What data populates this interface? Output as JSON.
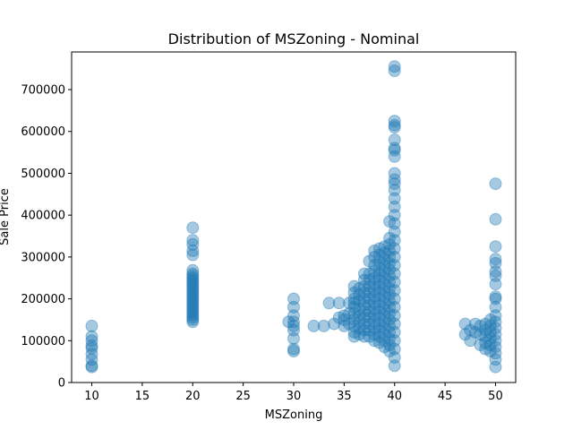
{
  "chart_data": {
    "type": "scatter",
    "title": "Distribution of MSZoning - Nominal",
    "xlabel": "MSZoning",
    "ylabel": "Sale Price",
    "xlim": [
      8,
      52
    ],
    "ylim": [
      0,
      790000
    ],
    "xticks": [
      10,
      15,
      20,
      25,
      30,
      35,
      40,
      45,
      50
    ],
    "yticks": [
      0,
      100000,
      200000,
      300000,
      400000,
      500000,
      600000,
      700000
    ],
    "grid": false,
    "legend": "none",
    "marker_color": "#1f77b4",
    "marker_alpha": 0.4,
    "series": [
      {
        "points": [
          [
            10,
            37000
          ],
          [
            10,
            40000
          ],
          [
            10,
            55000
          ],
          [
            10,
            68000
          ],
          [
            10,
            82000
          ],
          [
            10,
            88000
          ],
          [
            10,
            100000
          ],
          [
            10,
            110000
          ],
          [
            10,
            135000
          ],
          [
            20,
            145000
          ],
          [
            20,
            150000
          ],
          [
            20,
            155000
          ],
          [
            20,
            160000
          ],
          [
            20,
            165000
          ],
          [
            20,
            170000
          ],
          [
            20,
            175000
          ],
          [
            20,
            180000
          ],
          [
            20,
            185000
          ],
          [
            20,
            190000
          ],
          [
            20,
            195000
          ],
          [
            20,
            200000
          ],
          [
            20,
            205000
          ],
          [
            20,
            210000
          ],
          [
            20,
            215000
          ],
          [
            20,
            220000
          ],
          [
            20,
            225000
          ],
          [
            20,
            230000
          ],
          [
            20,
            235000
          ],
          [
            20,
            240000
          ],
          [
            20,
            245000
          ],
          [
            20,
            250000
          ],
          [
            20,
            255000
          ],
          [
            20,
            260000
          ],
          [
            20,
            268000
          ],
          [
            20,
            305000
          ],
          [
            20,
            315000
          ],
          [
            20,
            330000
          ],
          [
            20,
            340000
          ],
          [
            20,
            370000
          ],
          [
            30,
            75000
          ],
          [
            30,
            80000
          ],
          [
            30,
            105000
          ],
          [
            30,
            125000
          ],
          [
            30,
            135000
          ],
          [
            30,
            145000
          ],
          [
            30,
            160000
          ],
          [
            30,
            180000
          ],
          [
            30,
            200000
          ],
          [
            29.5,
            145000
          ],
          [
            32,
            135000
          ],
          [
            33,
            135000
          ],
          [
            33.5,
            190000
          ],
          [
            34,
            140000
          ],
          [
            34.5,
            155000
          ],
          [
            34.5,
            190000
          ],
          [
            35,
            135000
          ],
          [
            35,
            150000
          ],
          [
            35,
            160000
          ],
          [
            35.5,
            190000
          ],
          [
            35.5,
            140000
          ],
          [
            35.5,
            165000
          ],
          [
            36,
            110000
          ],
          [
            36,
            120000
          ],
          [
            36,
            135000
          ],
          [
            36,
            150000
          ],
          [
            36,
            165000
          ],
          [
            36,
            180000
          ],
          [
            36,
            190000
          ],
          [
            36,
            200000
          ],
          [
            36,
            215000
          ],
          [
            36,
            230000
          ],
          [
            36.5,
            115000
          ],
          [
            36.5,
            130000
          ],
          [
            36.5,
            145000
          ],
          [
            36.5,
            160000
          ],
          [
            36.5,
            175000
          ],
          [
            36.5,
            195000
          ],
          [
            36.5,
            210000
          ],
          [
            36.5,
            225000
          ],
          [
            37,
            110000
          ],
          [
            37,
            125000
          ],
          [
            37,
            140000
          ],
          [
            37,
            155000
          ],
          [
            37,
            170000
          ],
          [
            37,
            185000
          ],
          [
            37,
            200000
          ],
          [
            37,
            215000
          ],
          [
            37,
            230000
          ],
          [
            37,
            245000
          ],
          [
            37,
            260000
          ],
          [
            37.5,
            110000
          ],
          [
            37.5,
            125000
          ],
          [
            37.5,
            140000
          ],
          [
            37.5,
            155000
          ],
          [
            37.5,
            170000
          ],
          [
            37.5,
            185000
          ],
          [
            37.5,
            200000
          ],
          [
            37.5,
            215000
          ],
          [
            37.5,
            230000
          ],
          [
            37.5,
            245000
          ],
          [
            37.5,
            260000
          ],
          [
            37.5,
            290000
          ],
          [
            38,
            100000
          ],
          [
            38,
            115000
          ],
          [
            38,
            130000
          ],
          [
            38,
            145000
          ],
          [
            38,
            160000
          ],
          [
            38,
            175000
          ],
          [
            38,
            190000
          ],
          [
            38,
            205000
          ],
          [
            38,
            220000
          ],
          [
            38,
            235000
          ],
          [
            38,
            250000
          ],
          [
            38,
            265000
          ],
          [
            38,
            280000
          ],
          [
            38,
            300000
          ],
          [
            38,
            315000
          ],
          [
            38.5,
            95000
          ],
          [
            38.5,
            110000
          ],
          [
            38.5,
            125000
          ],
          [
            38.5,
            140000
          ],
          [
            38.5,
            155000
          ],
          [
            38.5,
            170000
          ],
          [
            38.5,
            185000
          ],
          [
            38.5,
            200000
          ],
          [
            38.5,
            215000
          ],
          [
            38.5,
            230000
          ],
          [
            38.5,
            245000
          ],
          [
            38.5,
            260000
          ],
          [
            38.5,
            275000
          ],
          [
            38.5,
            290000
          ],
          [
            38.5,
            305000
          ],
          [
            38.5,
            320000
          ],
          [
            39,
            85000
          ],
          [
            39,
            100000
          ],
          [
            39,
            115000
          ],
          [
            39,
            130000
          ],
          [
            39,
            145000
          ],
          [
            39,
            160000
          ],
          [
            39,
            175000
          ],
          [
            39,
            190000
          ],
          [
            39,
            205000
          ],
          [
            39,
            220000
          ],
          [
            39,
            235000
          ],
          [
            39,
            250000
          ],
          [
            39,
            265000
          ],
          [
            39,
            280000
          ],
          [
            39,
            295000
          ],
          [
            39,
            310000
          ],
          [
            39,
            325000
          ],
          [
            39.5,
            75000
          ],
          [
            39.5,
            90000
          ],
          [
            39.5,
            105000
          ],
          [
            39.5,
            120000
          ],
          [
            39.5,
            135000
          ],
          [
            39.5,
            150000
          ],
          [
            39.5,
            165000
          ],
          [
            39.5,
            180000
          ],
          [
            39.5,
            195000
          ],
          [
            39.5,
            210000
          ],
          [
            39.5,
            225000
          ],
          [
            39.5,
            240000
          ],
          [
            39.5,
            255000
          ],
          [
            39.5,
            270000
          ],
          [
            39.5,
            285000
          ],
          [
            39.5,
            300000
          ],
          [
            39.5,
            315000
          ],
          [
            39.5,
            330000
          ],
          [
            39.5,
            345000
          ],
          [
            39.5,
            385000
          ],
          [
            40,
            40000
          ],
          [
            40,
            60000
          ],
          [
            40,
            80000
          ],
          [
            40,
            100000
          ],
          [
            40,
            120000
          ],
          [
            40,
            140000
          ],
          [
            40,
            160000
          ],
          [
            40,
            180000
          ],
          [
            40,
            200000
          ],
          [
            40,
            220000
          ],
          [
            40,
            240000
          ],
          [
            40,
            260000
          ],
          [
            40,
            280000
          ],
          [
            40,
            300000
          ],
          [
            40,
            320000
          ],
          [
            40,
            340000
          ],
          [
            40,
            360000
          ],
          [
            40,
            380000
          ],
          [
            40,
            400000
          ],
          [
            40,
            420000
          ],
          [
            40,
            440000
          ],
          [
            40,
            460000
          ],
          [
            40,
            475000
          ],
          [
            40,
            485000
          ],
          [
            40,
            500000
          ],
          [
            40,
            540000
          ],
          [
            40,
            555000
          ],
          [
            40,
            560000
          ],
          [
            40,
            580000
          ],
          [
            40,
            610000
          ],
          [
            40,
            615000
          ],
          [
            40,
            625000
          ],
          [
            40,
            745000
          ],
          [
            40,
            755000
          ],
          [
            47,
            115000
          ],
          [
            47,
            140000
          ],
          [
            47.5,
            100000
          ],
          [
            47.5,
            125000
          ],
          [
            48,
            120000
          ],
          [
            48,
            140000
          ],
          [
            48.5,
            90000
          ],
          [
            48.5,
            115000
          ],
          [
            48.5,
            135000
          ],
          [
            49,
            80000
          ],
          [
            49,
            95000
          ],
          [
            49,
            110000
          ],
          [
            49,
            125000
          ],
          [
            49,
            140000
          ],
          [
            49.5,
            75000
          ],
          [
            49.5,
            90000
          ],
          [
            49.5,
            105000
          ],
          [
            49.5,
            120000
          ],
          [
            49.5,
            135000
          ],
          [
            49.5,
            150000
          ],
          [
            50,
            37000
          ],
          [
            50,
            55000
          ],
          [
            50,
            70000
          ],
          [
            50,
            85000
          ],
          [
            50,
            100000
          ],
          [
            50,
            115000
          ],
          [
            50,
            130000
          ],
          [
            50,
            145000
          ],
          [
            50,
            160000
          ],
          [
            50,
            180000
          ],
          [
            50,
            200000
          ],
          [
            50,
            205000
          ],
          [
            50,
            235000
          ],
          [
            50,
            255000
          ],
          [
            50,
            265000
          ],
          [
            50,
            285000
          ],
          [
            50,
            295000
          ],
          [
            50,
            325000
          ],
          [
            50,
            390000
          ],
          [
            50,
            475000
          ]
        ]
      }
    ]
  }
}
